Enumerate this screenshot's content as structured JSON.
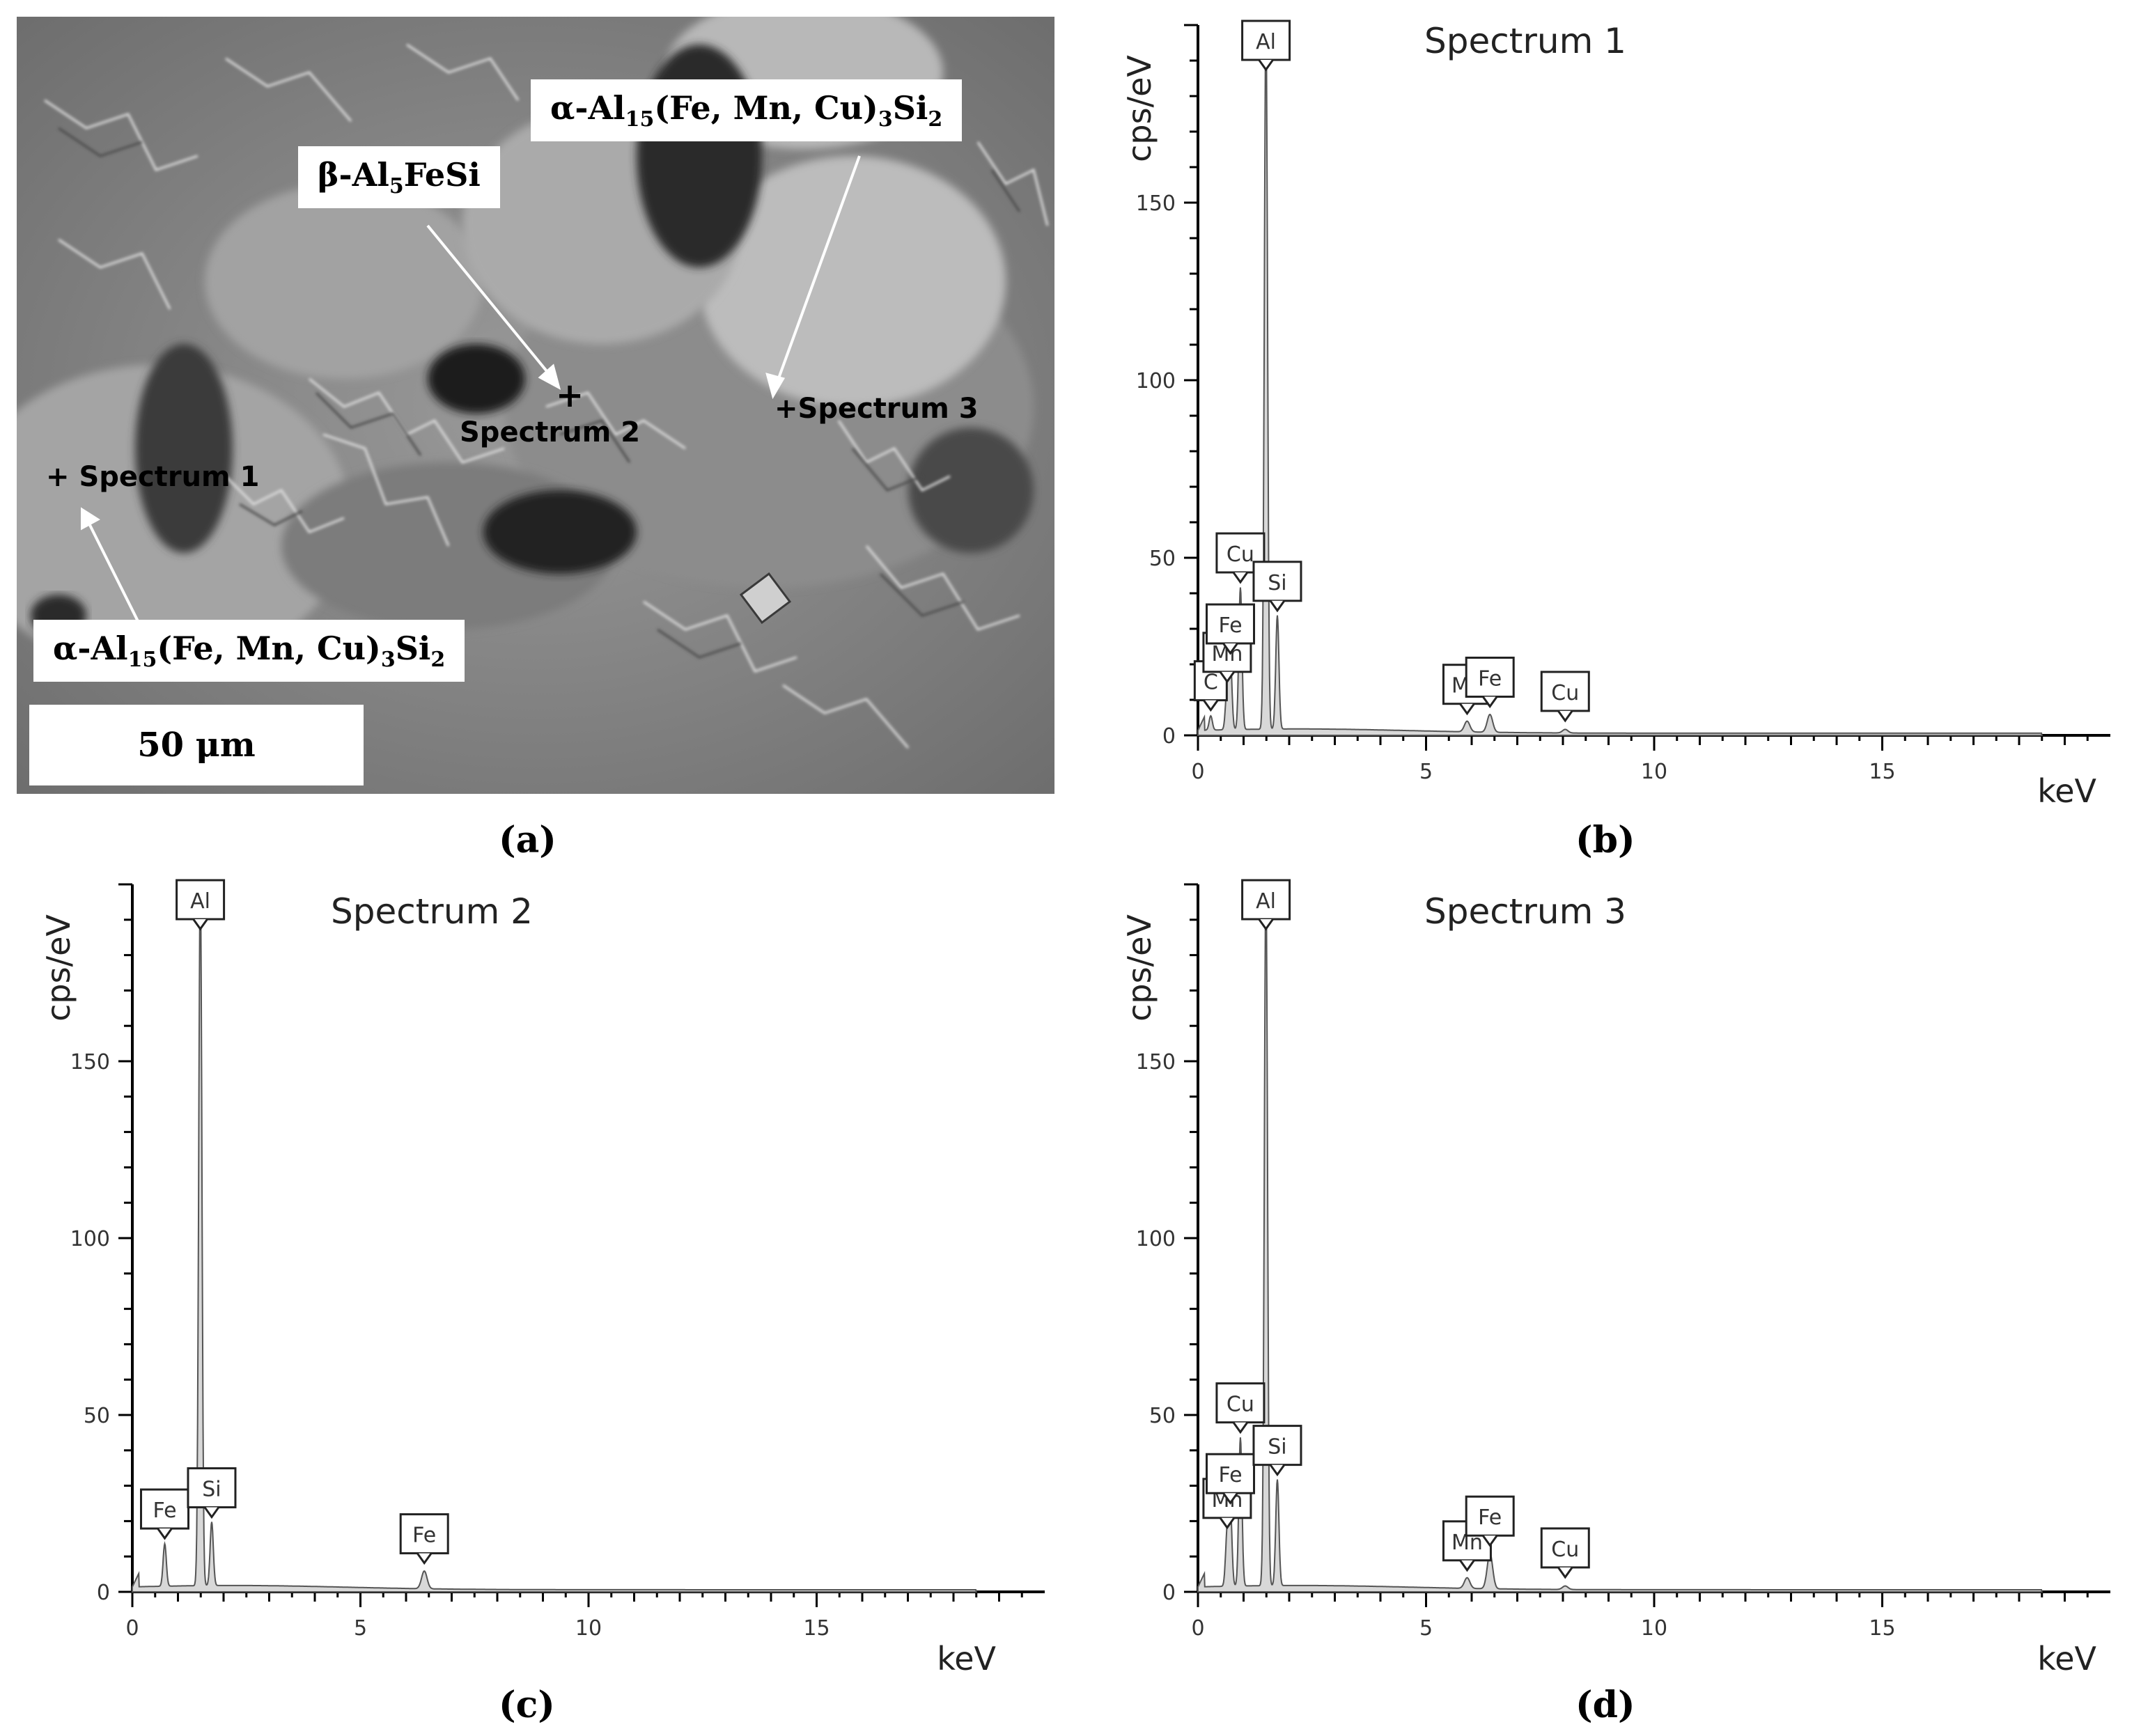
{
  "panels": {
    "a": "(a)",
    "b": "(b)",
    "c": "(c)",
    "d": "(d)"
  },
  "sem": {
    "scale_bar": "50 μm",
    "labels": {
      "alpha_top_pre": "α-Al",
      "alpha_top_s1": "15",
      "alpha_top_mid": "(Fe, Mn, Cu)",
      "alpha_top_s2": "3",
      "alpha_top_post": "Si",
      "alpha_top_s3": "2",
      "beta_pre": "β-Al",
      "beta_s1": "5",
      "beta_post": "FeSi",
      "alpha_bottom_pre": "α-Al",
      "alpha_bottom_s1": "15",
      "alpha_bottom_mid": "(Fe, Mn, Cu)",
      "alpha_bottom_s2": "3",
      "alpha_bottom_post": "Si",
      "alpha_bottom_s3": "2"
    },
    "spectrum_marks": [
      "+ Spectrum 1",
      "+",
      "Spectrum 2",
      "+Spectrum 3"
    ],
    "colors": {
      "background": "#8e8e8e",
      "dark": "#1c1c1c",
      "light": "#c8c8c8"
    }
  },
  "chart_data": [
    {
      "type": "line",
      "panel": "b",
      "title": "Spectrum 1",
      "xlabel": "keV",
      "ylabel": "cps/eV",
      "xlim": [
        0,
        20
      ],
      "ylim": [
        0,
        200
      ],
      "xticks": [
        0,
        5,
        10,
        15
      ],
      "yticks": [
        0,
        50,
        100,
        150
      ],
      "peaks": [
        {
          "label": "C",
          "x": 0.28,
          "y": 4
        },
        {
          "label": "Mn",
          "x": 0.64,
          "y": 12
        },
        {
          "label": "Fe",
          "x": 0.71,
          "y": 20
        },
        {
          "label": "Cu",
          "x": 0.93,
          "y": 40
        },
        {
          "label": "Al",
          "x": 1.49,
          "y": 200
        },
        {
          "label": "Si",
          "x": 1.74,
          "y": 32
        },
        {
          "label": "Mn",
          "x": 5.9,
          "y": 3
        },
        {
          "label": "Fe",
          "x": 6.4,
          "y": 5
        },
        {
          "label": "Cu",
          "x": 8.05,
          "y": 1
        }
      ]
    },
    {
      "type": "line",
      "panel": "c",
      "title": "Spectrum 2",
      "xlabel": "keV",
      "ylabel": "cps/eV",
      "xlim": [
        0,
        20
      ],
      "ylim": [
        0,
        200
      ],
      "xticks": [
        0,
        5,
        10,
        15
      ],
      "yticks": [
        0,
        50,
        100,
        150
      ],
      "peaks": [
        {
          "label": "Fe",
          "x": 0.71,
          "y": 12
        },
        {
          "label": "Al",
          "x": 1.49,
          "y": 200
        },
        {
          "label": "Si",
          "x": 1.74,
          "y": 18
        },
        {
          "label": "Fe",
          "x": 6.4,
          "y": 5
        }
      ]
    },
    {
      "type": "line",
      "panel": "d",
      "title": "Spectrum 3",
      "xlabel": "keV",
      "ylabel": "cps/eV",
      "xlim": [
        0,
        20
      ],
      "ylim": [
        0,
        200
      ],
      "xticks": [
        0,
        5,
        10,
        15
      ],
      "yticks": [
        0,
        50,
        100,
        150
      ],
      "peaks": [
        {
          "label": "Mn",
          "x": 0.64,
          "y": 15
        },
        {
          "label": "Fe",
          "x": 0.71,
          "y": 22
        },
        {
          "label": "Cu",
          "x": 0.93,
          "y": 42
        },
        {
          "label": "Al",
          "x": 1.49,
          "y": 200
        },
        {
          "label": "Si",
          "x": 1.74,
          "y": 30
        },
        {
          "label": "Mn",
          "x": 5.9,
          "y": 3
        },
        {
          "label": "Fe",
          "x": 6.4,
          "y": 10
        },
        {
          "label": "Cu",
          "x": 8.05,
          "y": 1
        }
      ]
    }
  ]
}
